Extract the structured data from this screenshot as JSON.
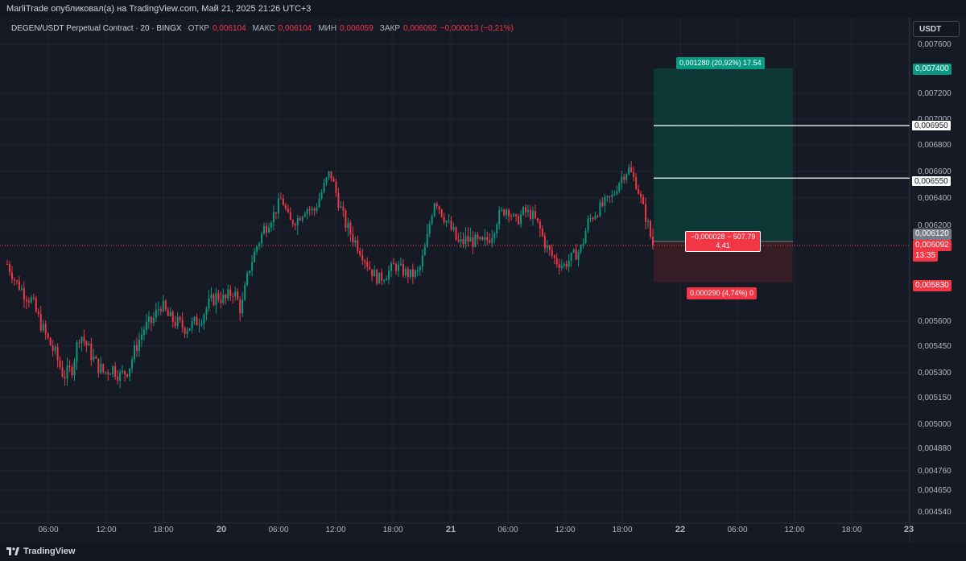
{
  "header": {
    "publisher_text": "MarliTrade опубликовал(а) на TradingView.com, Май 21, 2025 21:26 UTC+3"
  },
  "legend": {
    "symbol": "DEGEN/USDT Perpetual Contract · 20 · BINGX",
    "open_label": "ОТКР",
    "open_value": "0,006104",
    "high_label": "МАКС",
    "high_value": "0,006104",
    "low_label": "МИН",
    "low_value": "0,006059",
    "close_label": "ЗАКР",
    "close_value": "0,006092",
    "change_value": "−0,000013 (−0,21%)"
  },
  "currency_button": "USDT",
  "price_axis": {
    "ticks": [
      "0,007600",
      "0,007200",
      "0,007000",
      "0,006800",
      "0,006600",
      "0,006400",
      "0,006200",
      "0,005600",
      "0,005450",
      "0,005300",
      "0,005150",
      "0,005000",
      "0,004880",
      "0,004760",
      "0,004650",
      "0,004540"
    ],
    "tag_target": "0,007400",
    "tag_tp1": "0,006950",
    "tag_tp2": "0,006550",
    "tag_entry": "0,006120",
    "tag_last": "0,006092",
    "tag_countdown": "13:35",
    "tag_stop": "0,005830"
  },
  "time_axis": {
    "labels": [
      "06:00",
      "12:00",
      "18:00",
      "20",
      "06:00",
      "12:00",
      "18:00",
      "21",
      "06:00",
      "12:00",
      "18:00",
      "22",
      "06:00",
      "12:00",
      "18:00",
      "23"
    ]
  },
  "position": {
    "target_label": "0,001280 (20,92%) 17.54",
    "stop_label": "0,000290 (4,74%) 0",
    "pnl_line1": "−0,000028 − 507.79",
    "pnl_line2": "4,41"
  },
  "footer": {
    "brand": "TradingView"
  },
  "colors": {
    "background": "#161a25",
    "up": "#089981",
    "down": "#f23645",
    "target_zone": "#0c3b37",
    "stop_zone": "#3a1d25"
  },
  "chart_data": {
    "type": "candlestick",
    "title": "DEGEN/USDT Perpetual Contract · 20 · BINGX",
    "ylabel": "USDT",
    "ylim": [
      0.00448,
      0.00768
    ],
    "x_labels": [
      "06:00",
      "12:00",
      "18:00",
      "20",
      "06:00",
      "12:00",
      "18:00",
      "21",
      "06:00",
      "12:00",
      "18:00",
      "22",
      "06:00",
      "12:00",
      "18:00",
      "23"
    ],
    "close_path": [
      0.00596,
      0.00584,
      0.00577,
      0.00572,
      0.0056,
      0.00549,
      0.0054,
      0.00528,
      0.00532,
      0.00553,
      0.00544,
      0.00535,
      0.0053,
      0.00533,
      0.00528,
      0.00532,
      0.00545,
      0.00556,
      0.0056,
      0.0057,
      0.00562,
      0.00559,
      0.00556,
      0.00558,
      0.00562,
      0.0057,
      0.00575,
      0.00572,
      0.00578,
      0.00566,
      0.00593,
      0.0061,
      0.0062,
      0.00628,
      0.0064,
      0.00622,
      0.00625,
      0.00633,
      0.0063,
      0.00645,
      0.0066,
      0.00638,
      0.0062,
      0.00613,
      0.00603,
      0.00592,
      0.00585,
      0.00589,
      0.00595,
      0.00591,
      0.00588,
      0.0059,
      0.00612,
      0.0064,
      0.00627,
      0.00618,
      0.0061,
      0.00613,
      0.00611,
      0.0061,
      0.00616,
      0.00628,
      0.00633,
      0.00622,
      0.0063,
      0.00628,
      0.00618,
      0.00606,
      0.00598,
      0.00595,
      0.00601,
      0.00606,
      0.00623,
      0.0063,
      0.00636,
      0.00641,
      0.00655,
      0.00662,
      0.0065,
      0.00628,
      0.00609
    ],
    "position": {
      "entry": 0.00612,
      "target": 0.0074,
      "take_profit_1": 0.00695,
      "take_profit_2": 0.00655,
      "stop": 0.00583,
      "last": 0.006092
    }
  }
}
